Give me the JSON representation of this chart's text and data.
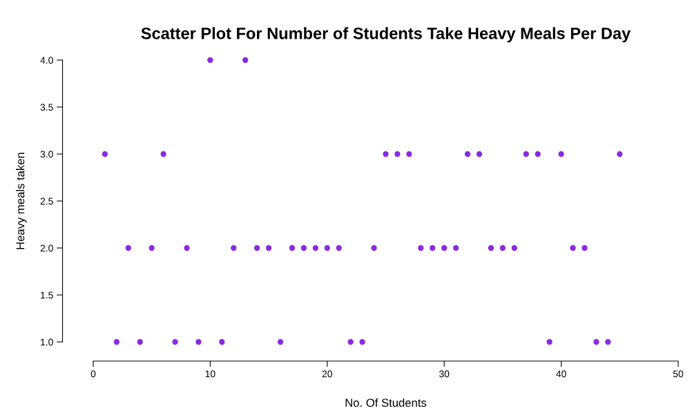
{
  "chart_data": {
    "type": "scatter",
    "title": "Scatter Plot For Number of Students Take Heavy Meals Per Day",
    "xlabel": "No. Of Students",
    "ylabel": "Heavy meals taken",
    "x": [
      1,
      2,
      3,
      4,
      5,
      6,
      7,
      8,
      9,
      10,
      11,
      12,
      13,
      14,
      15,
      16,
      17,
      18,
      19,
      20,
      21,
      22,
      23,
      24,
      25,
      26,
      27,
      28,
      29,
      30,
      31,
      32,
      33,
      34,
      35,
      36,
      37,
      38,
      39,
      40,
      41,
      42,
      43,
      44,
      45
    ],
    "values": [
      3,
      1,
      2,
      1,
      2,
      3,
      1,
      2,
      1,
      4,
      1,
      2,
      4,
      2,
      2,
      1,
      2,
      2,
      2,
      2,
      2,
      1,
      1,
      2,
      3,
      3,
      3,
      2,
      2,
      2,
      2,
      3,
      3,
      2,
      2,
      2,
      3,
      3,
      1,
      3,
      2,
      2,
      1,
      1,
      3
    ],
    "color": "#8a2be2",
    "marker": "circle",
    "xlim": [
      0,
      50
    ],
    "ylim": [
      1,
      4
    ],
    "xticks": [
      0,
      10,
      20,
      30,
      40,
      50
    ],
    "yticks": [
      {
        "value": 1,
        "label": "1.0"
      },
      {
        "value": 1.5,
        "label": "1.5"
      },
      {
        "value": 2,
        "label": "2.0"
      },
      {
        "value": 2.5,
        "label": "2.5"
      },
      {
        "value": 3,
        "label": "3.0"
      },
      {
        "value": 3.5,
        "label": "3.5"
      },
      {
        "value": 4,
        "label": "4.0"
      }
    ],
    "grid": false
  }
}
